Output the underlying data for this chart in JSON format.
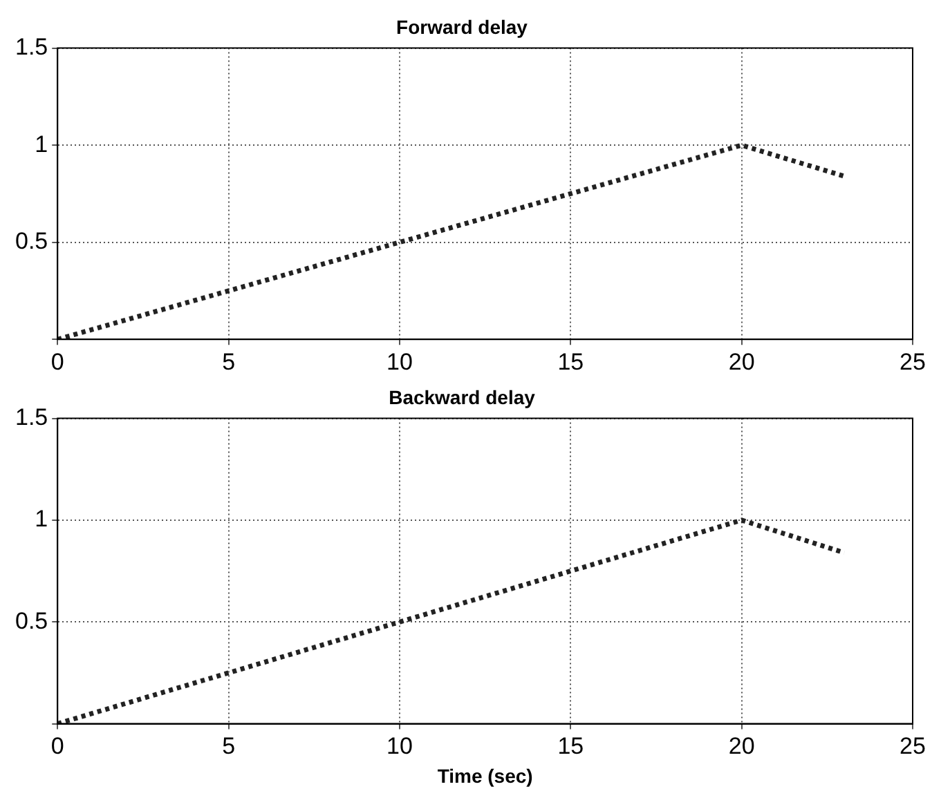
{
  "chart_data": [
    {
      "type": "line",
      "title": "Forward delay",
      "x": [
        0,
        20,
        23
      ],
      "series": [
        {
          "color": "#222222",
          "values": [
            0,
            1,
            0.84
          ]
        }
      ],
      "xlim": [
        0,
        25
      ],
      "xticks": [
        0,
        5,
        10,
        15,
        20,
        25
      ],
      "ylim": [
        0,
        1.5
      ],
      "yticks": [
        {
          "value": 0,
          "label": null
        },
        0.5,
        1,
        1.5
      ],
      "grid": true,
      "legend": false,
      "marker": "none",
      "line_style": "dotted"
    },
    {
      "type": "line",
      "title": "Backward delay",
      "xlabel": "Time (sec)",
      "x": [
        0,
        20,
        23
      ],
      "series": [
        {
          "color": "#222222",
          "values": [
            0,
            1,
            0.84
          ]
        }
      ],
      "xlim": [
        0,
        25
      ],
      "xticks": [
        0,
        5,
        10,
        15,
        20,
        25
      ],
      "ylim": [
        0,
        1.5
      ],
      "yticks": [
        {
          "value": 0,
          "label": null
        },
        0.5,
        1,
        1.5
      ],
      "grid": true,
      "legend": false,
      "marker": "none",
      "line_style": "dotted"
    }
  ]
}
